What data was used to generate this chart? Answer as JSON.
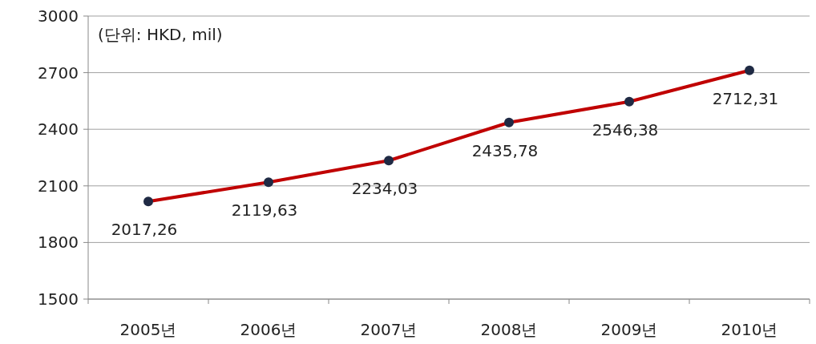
{
  "chart_data": {
    "type": "line",
    "annotations": [
      "(단위: HKD, mil)"
    ],
    "categories": [
      "2005년",
      "2006년",
      "2007년",
      "2008년",
      "2009년",
      "2010년"
    ],
    "series": [
      {
        "color": "#c00000",
        "values": [
          2017.26,
          2119.63,
          2234.03,
          2435.78,
          2546.38,
          2712.31
        ],
        "value_labels": [
          "2017,26",
          "2119,63",
          "2234,03",
          "2435,78",
          "2546,38",
          "2712,31"
        ]
      }
    ],
    "ylim": [
      1500,
      3000
    ],
    "yticks": [
      1500,
      1800,
      2100,
      2400,
      2700,
      3000
    ],
    "grid": "y",
    "marker": "circle",
    "line_style": "solid"
  }
}
